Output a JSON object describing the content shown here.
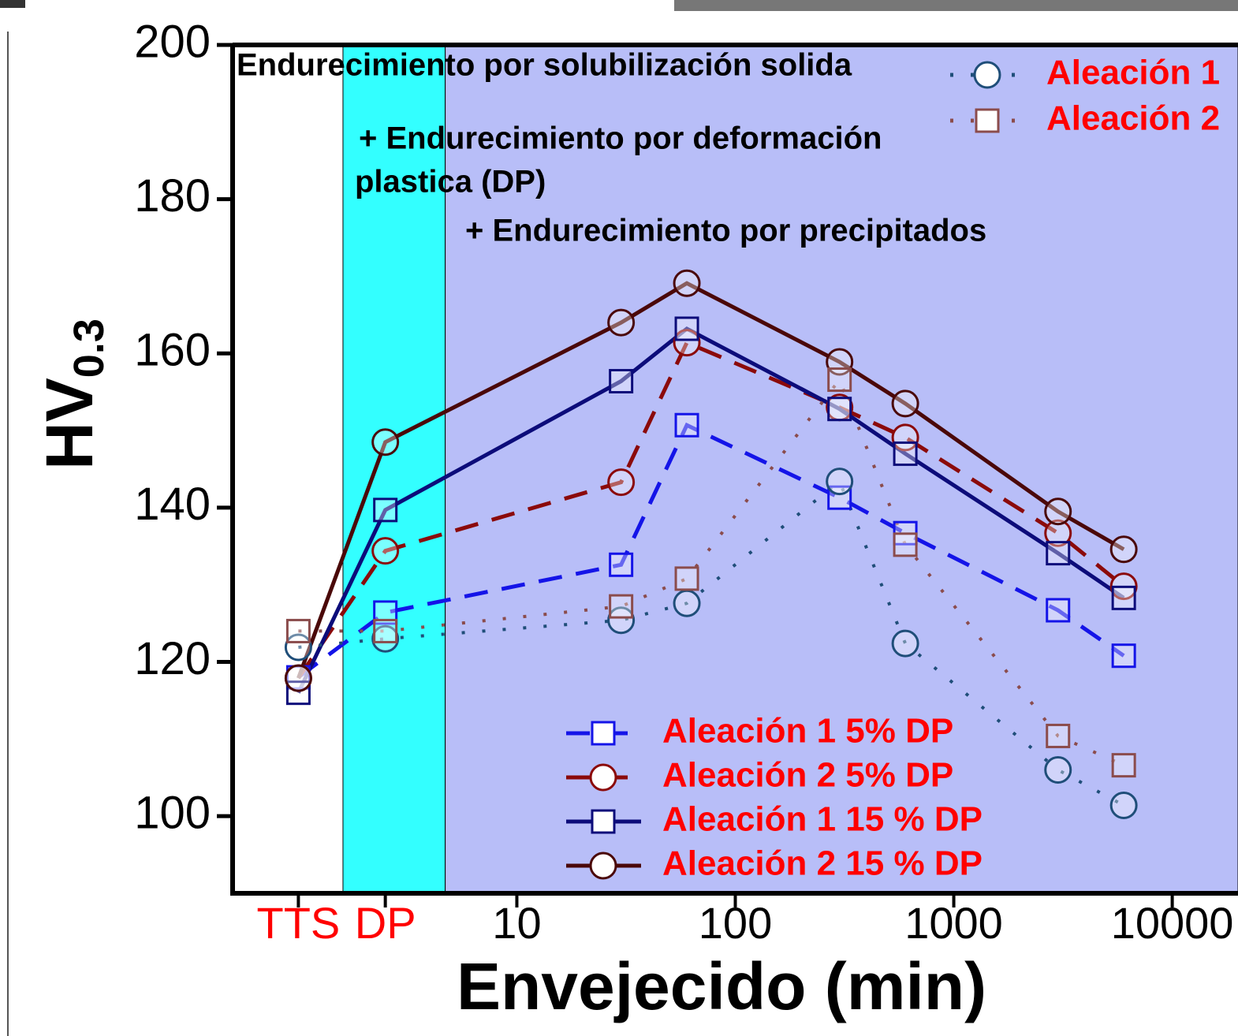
{
  "chart_data": {
    "type": "line",
    "x_label": "Envejecido (min)",
    "y_label": "HV",
    "y_label_sub": "0.3",
    "x": [
      1,
      2.5,
      30,
      60,
      300,
      600,
      3000,
      6000
    ],
    "xlim": [
      0.5,
      20000
    ],
    "x_log": true,
    "xticks": [
      {
        "value": 1,
        "label": "TTS"
      },
      {
        "value": 2.5,
        "label": "DP"
      },
      10,
      100,
      1000,
      10000
    ],
    "xtick_label_colors": [
      "#ff0000",
      "#ff0000",
      "#000000",
      "#000000",
      "#000000",
      "#000000"
    ],
    "ylim": [
      90,
      200
    ],
    "yticks": [
      100,
      120,
      140,
      160,
      180,
      200
    ],
    "regions": [
      {
        "x0": 1.6,
        "x1": 4.7,
        "color": "#33ffff"
      },
      {
        "x0": 4.7,
        "x1": 20000,
        "color": "#b8bef8"
      }
    ],
    "legend_text_color": "#ff0000",
    "annotations": [
      {
        "lines": [
          "Endurecimiento por solubilización solida"
        ]
      },
      {
        "lines": [
          "+ Endurecimiento por deformación",
          "plastica (DP)"
        ]
      },
      {
        "lines": [
          "+ Endurecimiento por precipitados"
        ]
      }
    ],
    "series": [
      {
        "name": "Aleación 1 5% DP",
        "color": "#1414e8",
        "dash": "dashed",
        "marker": "square",
        "values": [
          118,
          126.4,
          132.6,
          150.7,
          141.3,
          136.7,
          126.7,
          120.8
        ]
      },
      {
        "name": "Aleación 2 5% DP",
        "color": "#8b0a0a",
        "dash": "dashed",
        "marker": "circle",
        "values": [
          117.9,
          134.4,
          143.3,
          161.4,
          153,
          149.1,
          136.7,
          129.8
        ]
      },
      {
        "name": "Aleación 1 15 % DP",
        "color": "#0c0c7a",
        "dash": "solid",
        "marker": "square",
        "values": [
          116,
          139.7,
          156.4,
          163.2,
          152.8,
          147,
          134.1,
          128.3
        ]
      },
      {
        "name": "Aleación 2 15 % DP",
        "color": "#4a0808",
        "dash": "solid",
        "marker": "circle",
        "values": [
          117.9,
          148.5,
          164,
          169.1,
          158.9,
          153.5,
          139.5,
          134.6
        ]
      },
      {
        "name": "Aleación 1",
        "color": "#1f4e79",
        "dash": "dotted",
        "marker": "circle",
        "values": [
          121.9,
          123,
          125.4,
          127.6,
          143.4,
          122.4,
          106,
          101.4
        ]
      },
      {
        "name": "Aleación 2",
        "color": "#8b4c4c",
        "dash": "dotted",
        "marker": "square",
        "values": [
          124,
          124,
          127.2,
          130.8,
          156.6,
          135.2,
          110.4,
          106.6
        ]
      }
    ]
  }
}
